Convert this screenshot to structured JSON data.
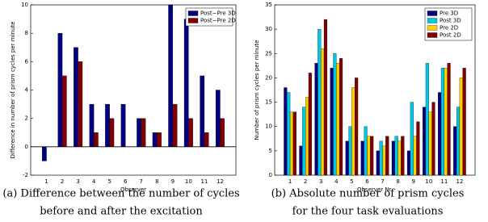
{
  "chart_data": [
    {
      "type": "bar",
      "ylabel": "Difference in number of prism cycles per minute",
      "xlabel": "Observer",
      "caption": [
        "(a) Difference between the number of cycles",
        "before and after the excitation"
      ],
      "categories": [
        "1",
        "2",
        "3",
        "4",
        "5",
        "6",
        "7",
        "8",
        "9",
        "10",
        "11",
        "12"
      ],
      "series": [
        {
          "name": "Post−Pre 3D",
          "color": "#000080",
          "values": [
            -1,
            8,
            7,
            3,
            3,
            3,
            2,
            1,
            10,
            9,
            5,
            4
          ]
        },
        {
          "name": "Post−Pre 2D",
          "color": "#800000",
          "values": [
            0,
            5,
            6,
            1,
            2,
            0,
            2,
            1,
            3,
            2,
            1,
            2
          ]
        }
      ],
      "ylim": [
        -2,
        10
      ],
      "yticks": [
        -2,
        0,
        2,
        4,
        6,
        8,
        10
      ],
      "legend": "upper right"
    },
    {
      "type": "bar",
      "ylabel": "Number of prism cycles per minute",
      "xlabel": "Observer Nr.",
      "caption": [
        "(b) Absolute number of prism cycles",
        "for the four task evaluations"
      ],
      "categories": [
        "1",
        "2",
        "3",
        "4",
        "5",
        "6",
        "7",
        "8",
        "9",
        "10",
        "11",
        "12"
      ],
      "series": [
        {
          "name": "Pre 3D",
          "color": "#000080",
          "values": [
            18,
            6,
            23,
            22,
            7,
            7,
            5,
            7,
            5,
            14,
            17,
            10
          ]
        },
        {
          "name": "Post 3D",
          "color": "#00c8e8",
          "values": [
            17,
            14,
            30,
            25,
            10,
            10,
            7,
            8,
            15,
            23,
            22,
            14
          ]
        },
        {
          "name": "Pre 2D",
          "color": "#ffd000",
          "values": [
            13,
            16,
            26,
            23,
            18,
            8,
            6,
            7,
            8,
            13,
            22,
            20
          ]
        },
        {
          "name": "Post 2D",
          "color": "#800000",
          "values": [
            13,
            21,
            32,
            24,
            20,
            8,
            8,
            8,
            11,
            15,
            23,
            22
          ]
        }
      ],
      "ylim": [
        0,
        35
      ],
      "yticks": [
        0,
        5,
        10,
        15,
        20,
        25,
        30,
        35
      ],
      "legend": "upper right"
    }
  ]
}
